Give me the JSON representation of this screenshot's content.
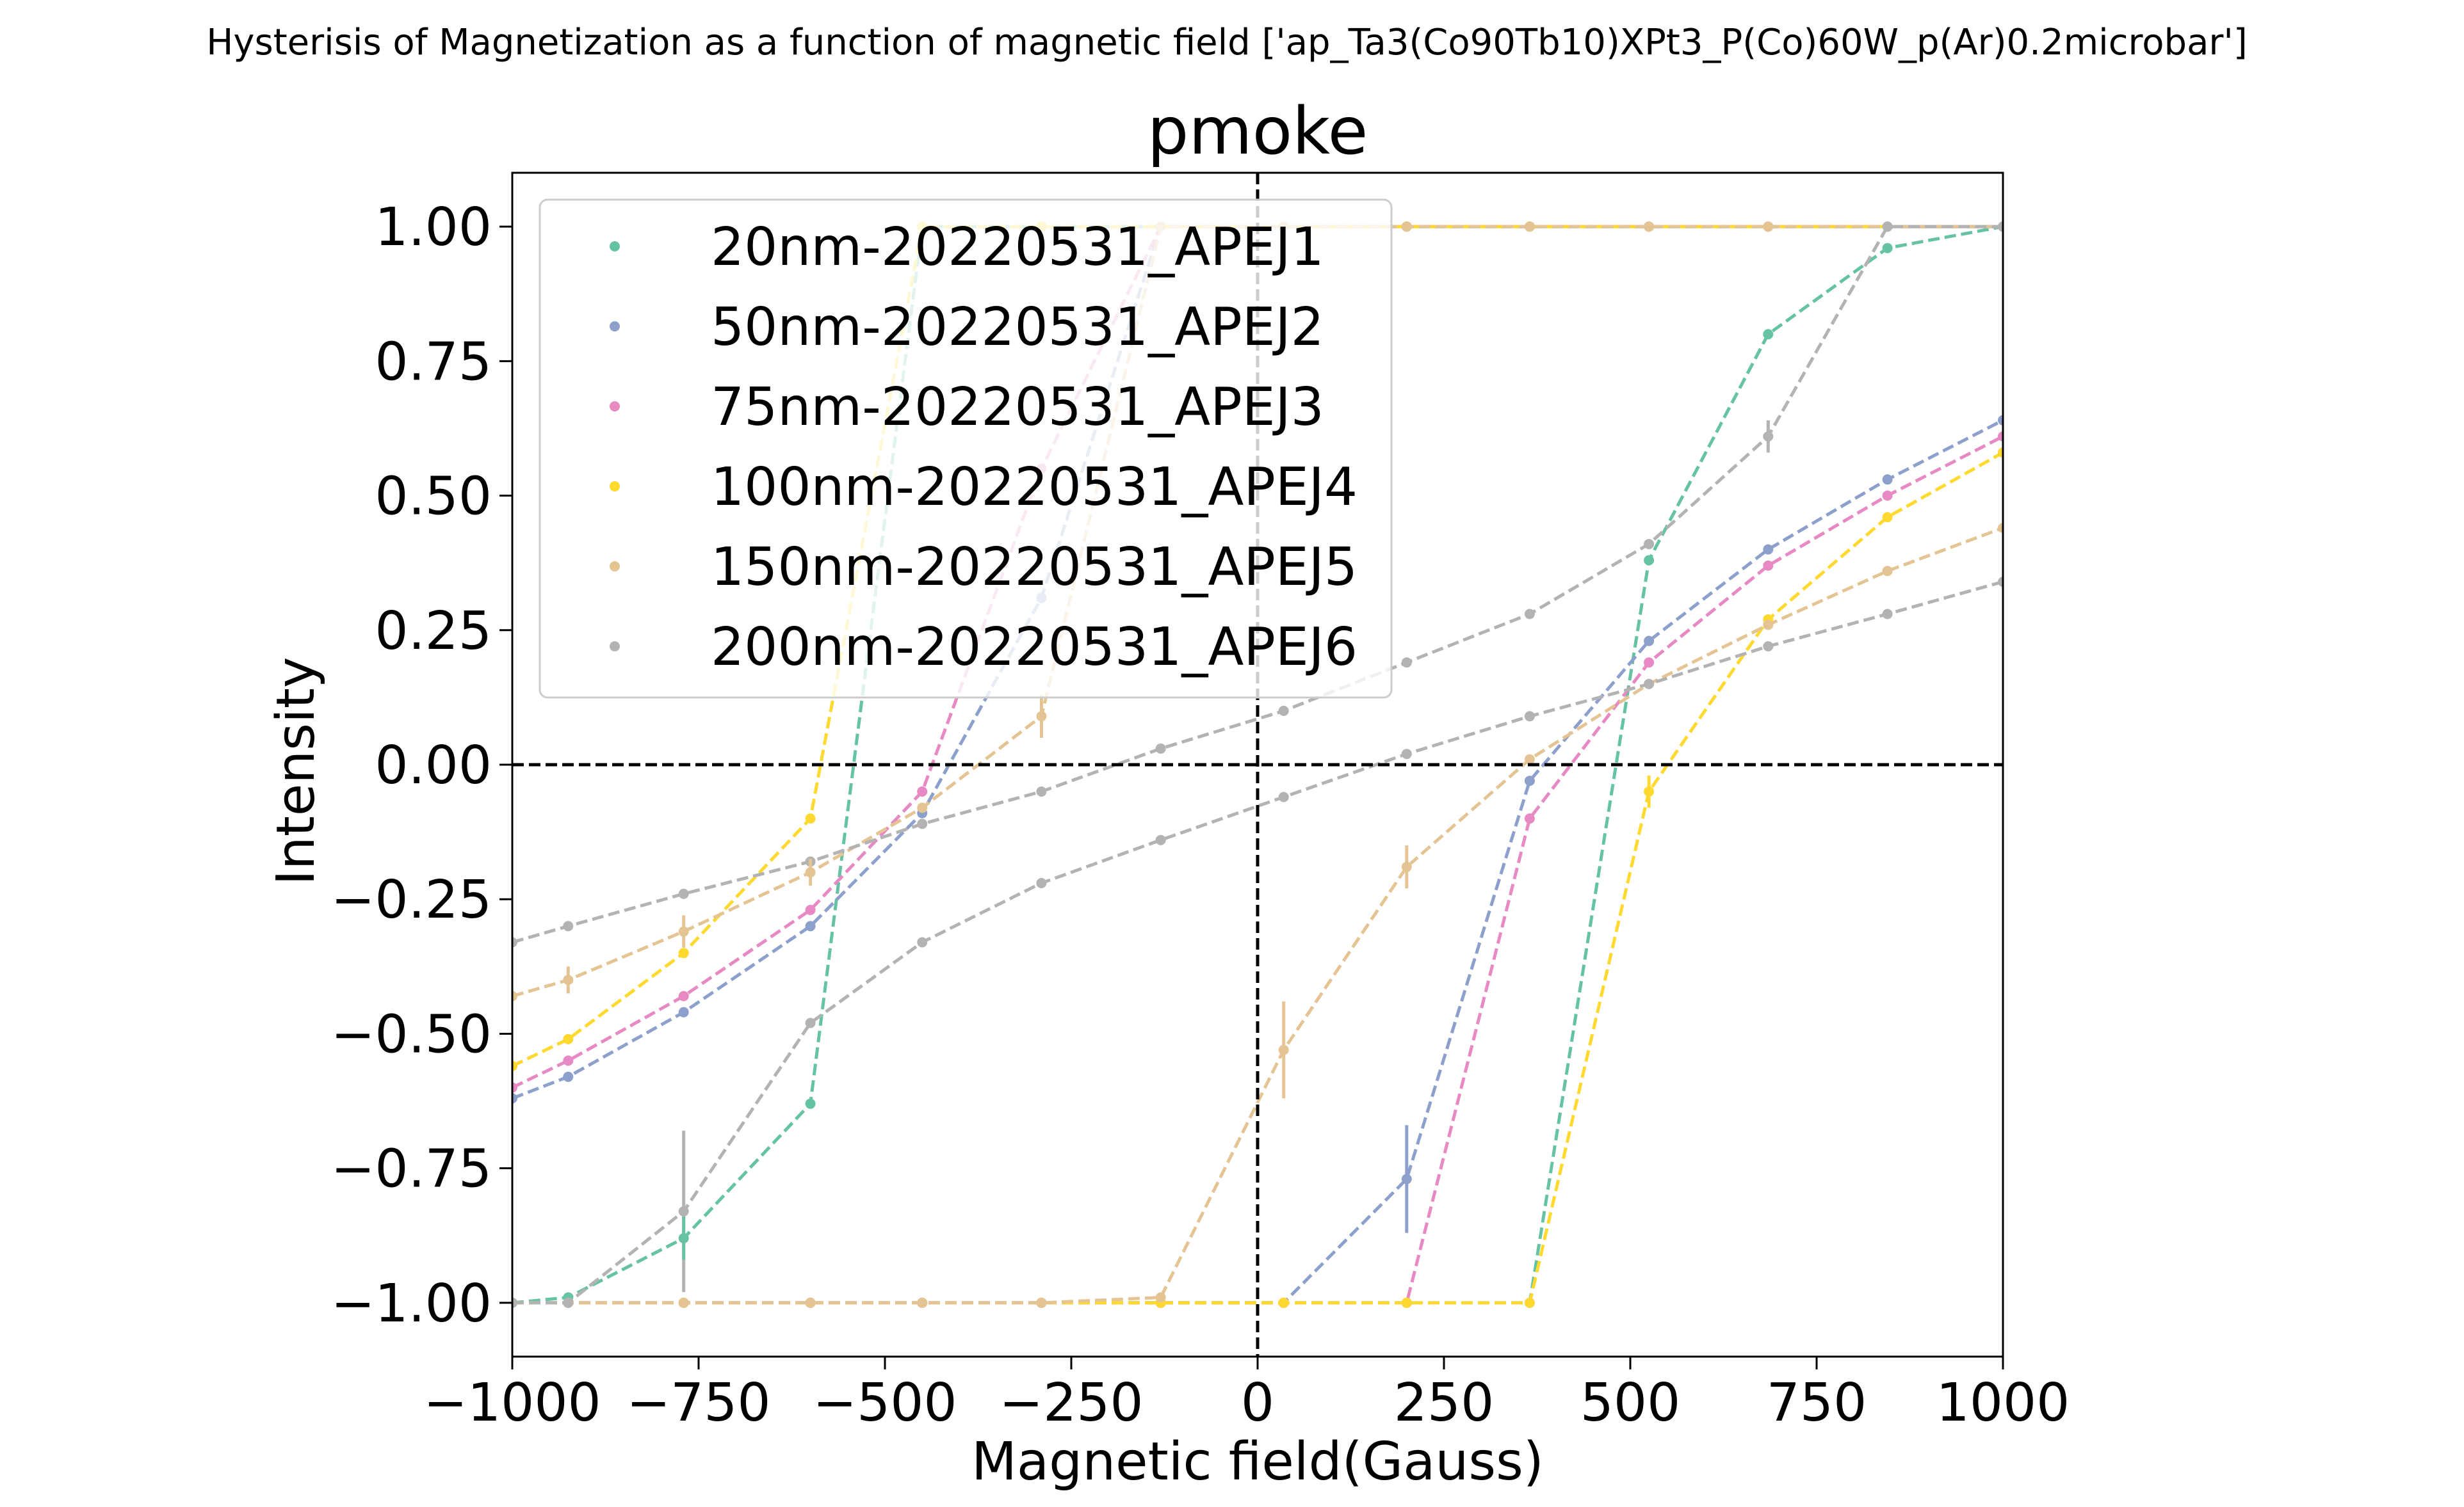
{
  "figure": {
    "suptitle": "Hysterisis of Magnetization as a function of magnetic field ['ap_Ta3(Co90Tb10)XPt3_P(Co)60W_p(Ar)0.2microbar']"
  },
  "chart_data": {
    "type": "line",
    "title": "pmoke",
    "xlabel": "Magnetic field(Gauss)",
    "ylabel": "Intensity",
    "xlim": [
      -1000,
      1000
    ],
    "ylim": [
      -1.1,
      1.1
    ],
    "xticks": [
      -1000,
      -750,
      -500,
      -250,
      0,
      250,
      500,
      750,
      1000
    ],
    "xtick_labels": [
      "−1000",
      "−750",
      "−500",
      "−250",
      "0",
      "250",
      "500",
      "750",
      "1000"
    ],
    "yticks": [
      1.0,
      0.75,
      0.5,
      0.25,
      0.0,
      -0.25,
      -0.5,
      -0.75,
      -1.0
    ],
    "ytick_labels": [
      "1.00",
      "0.75",
      "0.50",
      "0.25",
      "0.00",
      "−0.25",
      "−0.50",
      "−0.75",
      "−1.00"
    ],
    "grid": false,
    "legend_position": "top-left",
    "reference_lines": {
      "y": 0,
      "x": 0,
      "style": "dashed",
      "color": "#000000"
    },
    "series": [
      {
        "name": "20nm-20220531_APEJ1",
        "color": "#66c2a5",
        "branches": [
          {
            "x": [
              -1000,
              -925,
              -770,
              -600,
              -450,
              -290,
              -130,
              35,
              200,
              365,
              525,
              685,
              845,
              1000
            ],
            "y": [
              -1.0,
              -0.99,
              -0.88,
              -0.63,
              1.0,
              1.0,
              1.0,
              1.0,
              1.0,
              1.0,
              1.0,
              1.0,
              1.0,
              1.0
            ]
          },
          {
            "x": [
              -1000,
              -925,
              -770,
              -600,
              -450,
              -290,
              -130,
              35,
              200,
              365,
              525,
              685,
              845,
              1000
            ],
            "y": [
              -1.0,
              -1.0,
              -1.0,
              -1.0,
              -1.0,
              -1.0,
              -1.0,
              -1.0,
              -1.0,
              -1.0,
              0.38,
              0.8,
              0.96,
              1.0
            ]
          }
        ]
      },
      {
        "name": "50nm-20220531_APEJ2",
        "color": "#8da0cb",
        "branches": [
          {
            "x": [
              -1000,
              -925,
              -770,
              -600,
              -450,
              -290,
              -130,
              35,
              200,
              365,
              525,
              685,
              845,
              1000
            ],
            "y": [
              -0.62,
              -0.58,
              -0.46,
              -0.3,
              -0.09,
              0.31,
              1.0,
              1.0,
              1.0,
              1.0,
              1.0,
              1.0,
              1.0,
              1.0
            ]
          },
          {
            "x": [
              -1000,
              -925,
              -770,
              -600,
              -450,
              -290,
              -130,
              35,
              200,
              365,
              525,
              685,
              845,
              1000
            ],
            "y": [
              -1.0,
              -1.0,
              -1.0,
              -1.0,
              -1.0,
              -1.0,
              -1.0,
              -1.0,
              -0.77,
              -0.03,
              0.23,
              0.4,
              0.53,
              0.64
            ]
          }
        ]
      },
      {
        "name": "75nm-20220531_APEJ3",
        "color": "#e78ac3",
        "branches": [
          {
            "x": [
              -1000,
              -925,
              -770,
              -600,
              -450,
              -290,
              -130,
              35,
              200,
              365,
              525,
              685,
              845,
              1000
            ],
            "y": [
              -0.6,
              -0.55,
              -0.43,
              -0.27,
              -0.05,
              0.55,
              1.0,
              1.0,
              1.0,
              1.0,
              1.0,
              1.0,
              1.0,
              1.0
            ]
          },
          {
            "x": [
              -1000,
              -925,
              -770,
              -600,
              -450,
              -290,
              -130,
              35,
              200,
              365,
              525,
              685,
              845,
              1000
            ],
            "y": [
              -1.0,
              -1.0,
              -1.0,
              -1.0,
              -1.0,
              -1.0,
              -1.0,
              -1.0,
              -1.0,
              -0.1,
              0.19,
              0.37,
              0.5,
              0.61
            ]
          }
        ]
      },
      {
        "name": "100nm-20220531_APEJ4",
        "color": "#ffd92f",
        "branches": [
          {
            "x": [
              -1000,
              -925,
              -770,
              -600,
              -450,
              -290,
              -130,
              35,
              200,
              365,
              525,
              685,
              845,
              1000
            ],
            "y": [
              -0.56,
              -0.51,
              -0.35,
              -0.1,
              1.0,
              1.0,
              1.0,
              1.0,
              1.0,
              1.0,
              1.0,
              1.0,
              1.0,
              1.0
            ]
          },
          {
            "x": [
              -1000,
              -925,
              -770,
              -600,
              -450,
              -290,
              -130,
              35,
              200,
              365,
              525,
              685,
              845,
              1000
            ],
            "y": [
              -1.0,
              -1.0,
              -1.0,
              -1.0,
              -1.0,
              -1.0,
              -1.0,
              -1.0,
              -1.0,
              -1.0,
              -0.05,
              0.27,
              0.46,
              0.58
            ]
          }
        ]
      },
      {
        "name": "150nm-20220531_APEJ5",
        "color": "#e5c494",
        "branches": [
          {
            "x": [
              -1000,
              -925,
              -770,
              -600,
              -450,
              -290,
              -130,
              35,
              200,
              365,
              525,
              685,
              845,
              1000
            ],
            "y": [
              -0.43,
              -0.4,
              -0.31,
              -0.2,
              -0.08,
              0.09,
              1.0,
              1.0,
              1.0,
              1.0,
              1.0,
              1.0,
              1.0,
              1.0
            ]
          },
          {
            "x": [
              -1000,
              -925,
              -770,
              -600,
              -450,
              -290,
              -130,
              35,
              200,
              365,
              525,
              685,
              845,
              1000
            ],
            "y": [
              -1.0,
              -1.0,
              -1.0,
              -1.0,
              -1.0,
              -1.0,
              -0.99,
              -0.53,
              -0.19,
              0.01,
              0.15,
              0.26,
              0.36,
              0.44
            ]
          }
        ]
      },
      {
        "name": "200nm-20220531_APEJ6",
        "color": "#b3b3b3",
        "branches": [
          {
            "x": [
              -1000,
              -925,
              -770,
              -600,
              -450,
              -290,
              -130,
              35,
              200,
              365,
              525,
              685,
              845,
              1000
            ],
            "y": [
              -0.33,
              -0.3,
              -0.24,
              -0.18,
              -0.11,
              -0.05,
              0.03,
              0.1,
              0.19,
              0.28,
              0.41,
              0.61,
              1.0,
              1.0
            ]
          },
          {
            "x": [
              -1000,
              -925,
              -770,
              -600,
              -450,
              -290,
              -130,
              35,
              200,
              365,
              525,
              685,
              845,
              1000
            ],
            "y": [
              -1.0,
              -1.0,
              -0.83,
              -0.48,
              -0.33,
              -0.22,
              -0.14,
              -0.06,
              0.02,
              0.09,
              0.15,
              0.22,
              0.28,
              0.34
            ]
          }
        ]
      }
    ],
    "error_bars": [
      {
        "series": "200nm-20220531_APEJ6",
        "x": -770,
        "y": -0.83,
        "err": 0.15
      },
      {
        "series": "50nm-20220531_APEJ2",
        "x": 200,
        "y": -0.77,
        "err": 0.1
      },
      {
        "series": "150nm-20220531_APEJ5",
        "x": 35,
        "y": -0.53,
        "err": 0.09
      },
      {
        "series": "150nm-20220531_APEJ5",
        "x": 200,
        "y": -0.19,
        "err": 0.04
      },
      {
        "series": "150nm-20220531_APEJ5",
        "x": -290,
        "y": 0.09,
        "err": 0.04
      },
      {
        "series": "20nm-20220531_APEJ1",
        "x": -770,
        "y": -0.88,
        "err": 0.04
      },
      {
        "series": "200nm-20220531_APEJ6",
        "x": 685,
        "y": 0.61,
        "err": 0.03
      },
      {
        "series": "100nm-20220531_APEJ4",
        "x": 525,
        "y": -0.05,
        "err": 0.03
      },
      {
        "series": "150nm-20220531_APEJ5",
        "x": -770,
        "y": -0.31,
        "err": 0.03
      },
      {
        "series": "150nm-20220531_APEJ5",
        "x": -925,
        "y": -0.4,
        "err": 0.025
      },
      {
        "series": "150nm-20220531_APEJ5",
        "x": -600,
        "y": -0.2,
        "err": 0.025
      }
    ]
  }
}
